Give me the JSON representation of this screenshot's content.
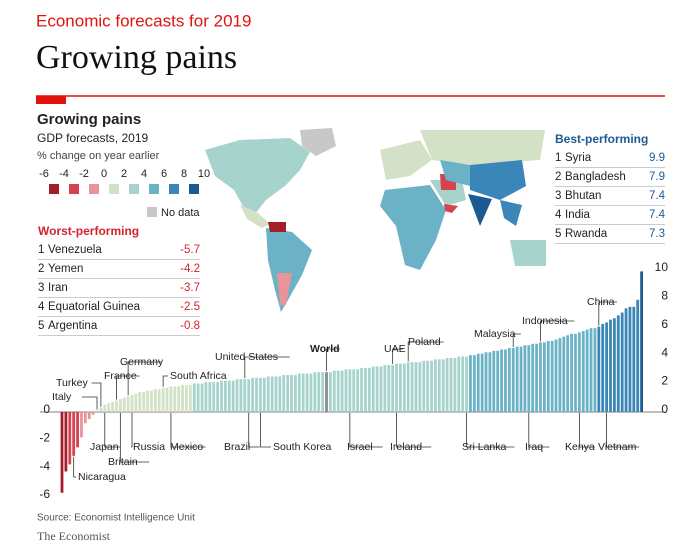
{
  "header": {
    "kicker": "Economic forecasts for 2019",
    "title": "Growing pains"
  },
  "chart_data": {
    "type": "bar",
    "title": "Growing pains",
    "subtitle": "GDP forecasts, 2019",
    "subtitle2": "% change on year earlier",
    "categories": [
      null,
      null,
      null,
      "Nicaragua",
      null,
      null,
      null,
      null,
      null,
      "Italy",
      "Turkey",
      "Japan",
      null,
      null,
      "France",
      "Britain",
      null,
      "Germany",
      "Russia",
      null,
      null,
      null,
      null,
      null,
      null,
      null,
      "South Africa",
      null,
      "Mexico",
      null,
      null,
      null,
      null,
      null,
      null,
      null,
      null,
      null,
      null,
      null,
      null,
      null,
      null,
      null,
      null,
      null,
      null,
      "United States",
      "Brazil",
      null,
      null,
      "South Korea",
      null,
      null,
      null,
      null,
      null,
      null,
      null,
      null,
      null,
      null,
      null,
      null,
      null,
      null,
      null,
      null,
      "World",
      null,
      null,
      null,
      null,
      null,
      "Israel",
      null,
      null,
      null,
      null,
      null,
      null,
      null,
      null,
      null,
      null,
      "UAE",
      "Ireland",
      null,
      null,
      "Poland",
      null,
      null,
      null,
      null,
      null,
      null,
      null,
      null,
      null,
      null,
      null,
      null,
      null,
      null,
      "Sri Lanka",
      null,
      null,
      null,
      null,
      null,
      null,
      null,
      null,
      null,
      null,
      null,
      "Malaysia",
      null,
      null,
      null,
      "Iraq",
      null,
      null,
      "Indonesia",
      null,
      null,
      null,
      null,
      null,
      null,
      null,
      null,
      null,
      "Kenya",
      null,
      null,
      null,
      null,
      "China",
      null,
      "Vietnam",
      null,
      null,
      null,
      null,
      null,
      null,
      null,
      null,
      null
    ],
    "values": [
      -5.7,
      -4.2,
      -3.7,
      -3.1,
      -2.5,
      -1.8,
      -0.8,
      -0.5,
      -0.2,
      0.1,
      0.3,
      0.5,
      0.6,
      0.7,
      0.8,
      0.9,
      1.0,
      1.1,
      1.2,
      1.3,
      1.4,
      1.4,
      1.5,
      1.5,
      1.6,
      1.6,
      1.7,
      1.7,
      1.8,
      1.8,
      1.8,
      1.9,
      1.9,
      1.9,
      2.0,
      2.0,
      2.0,
      2.1,
      2.1,
      2.1,
      2.1,
      2.2,
      2.2,
      2.2,
      2.2,
      2.3,
      2.3,
      2.3,
      2.3,
      2.4,
      2.4,
      2.4,
      2.4,
      2.5,
      2.5,
      2.5,
      2.5,
      2.6,
      2.6,
      2.6,
      2.6,
      2.7,
      2.7,
      2.7,
      2.7,
      2.8,
      2.8,
      2.8,
      2.8,
      2.8,
      2.9,
      2.9,
      2.9,
      3.0,
      3.0,
      3.0,
      3.0,
      3.1,
      3.1,
      3.1,
      3.2,
      3.2,
      3.2,
      3.3,
      3.3,
      3.3,
      3.4,
      3.4,
      3.4,
      3.5,
      3.5,
      3.5,
      3.5,
      3.6,
      3.6,
      3.6,
      3.7,
      3.7,
      3.7,
      3.8,
      3.8,
      3.8,
      3.9,
      3.9,
      3.9,
      4.0,
      4.0,
      4.1,
      4.1,
      4.2,
      4.2,
      4.3,
      4.3,
      4.4,
      4.4,
      4.5,
      4.5,
      4.6,
      4.6,
      4.7,
      4.7,
      4.8,
      4.8,
      4.9,
      4.9,
      5.0,
      5.0,
      5.1,
      5.2,
      5.3,
      5.4,
      5.5,
      5.5,
      5.6,
      5.7,
      5.8,
      5.9,
      5.9,
      6.0,
      6.2,
      6.3,
      6.5,
      6.6,
      6.8,
      7.0,
      7.3,
      7.4,
      7.4,
      7.9,
      9.9
    ],
    "highlight": "World",
    "highlight_color": "#8c8c8c",
    "ylim": [
      -6,
      10
    ],
    "yticks": [
      -6,
      -4,
      -2,
      0,
      2,
      4,
      6,
      8,
      10
    ],
    "legend": {
      "ticks": [
        -6,
        -4,
        -2,
        0,
        2,
        4,
        6,
        8,
        10
      ],
      "colors": [
        "#a31d2b",
        "#d4434f",
        "#e8949a",
        "#d3e2c6",
        "#a6d4cd",
        "#6cb2c7",
        "#3a86b8",
        "#1d5a92"
      ],
      "no_data_label": "No data",
      "no_data_color": "#c8c8c8"
    },
    "worst": {
      "title": "Worst-performing",
      "rows": [
        {
          "rank": 1,
          "name": "Venezuela",
          "value": -5.7
        },
        {
          "rank": 2,
          "name": "Yemen",
          "value": -4.2
        },
        {
          "rank": 3,
          "name": "Iran",
          "value": -3.7
        },
        {
          "rank": 4,
          "name": "Equatorial Guinea",
          "value": -2.5
        },
        {
          "rank": 5,
          "name": "Argentina",
          "value": -0.8
        }
      ]
    },
    "best": {
      "title": "Best-performing",
      "rows": [
        {
          "rank": 1,
          "name": "Syria",
          "value": 9.9
        },
        {
          "rank": 2,
          "name": "Bangladesh",
          "value": 7.9
        },
        {
          "rank": 3,
          "name": "Bhutan",
          "value": 7.4
        },
        {
          "rank": 4,
          "name": "India",
          "value": 7.4
        },
        {
          "rank": 5,
          "name": "Rwanda",
          "value": 7.3
        }
      ]
    },
    "source": "Source: Economist Intelligence Unit"
  },
  "footer": {
    "brand": "The Economist"
  }
}
